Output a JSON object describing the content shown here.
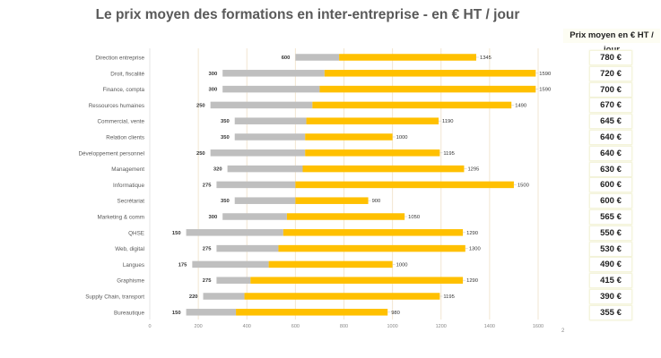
{
  "page_number": "2",
  "table": {
    "header": "Prix moyen en € HT / jour",
    "values": [
      "780 €",
      "720 €",
      "700 €",
      "670 €",
      "645 €",
      "640 €",
      "640 €",
      "630 €",
      "600 €",
      "600 €",
      "565 €",
      "550 €",
      "530 €",
      "490 €",
      "415 €",
      "390 €",
      "355 €"
    ]
  },
  "colors": {
    "min_segment": "#bfbfbf",
    "max_segment": "#ffc000",
    "grid": "#f2e6d0",
    "title": "#595959"
  },
  "chart_data": {
    "type": "bar",
    "orientation": "horizontal",
    "stacked": true,
    "title": "Le prix moyen des formations en inter-entreprise - en € HT / jour",
    "categories": [
      "Direction entreprise",
      "Droit, fiscalité",
      "Finance, compta",
      "Ressources humaines",
      "Commercial, vente",
      "Relation clients",
      "Développement personnel",
      "Management",
      "Informatique",
      "Secrétariat",
      "Marketing & comm",
      "QHSE",
      "Web, digital",
      "Langues",
      "Graphisme",
      "Supply Chain, transport",
      "Bureautique"
    ],
    "min": [
      600,
      300,
      300,
      250,
      350,
      350,
      250,
      320,
      275,
      350,
      300,
      150,
      275,
      175,
      275,
      220,
      150
    ],
    "average": [
      780,
      720,
      700,
      670,
      645,
      640,
      640,
      630,
      600,
      600,
      565,
      550,
      530,
      490,
      415,
      390,
      355
    ],
    "max": [
      1345,
      1590,
      1590,
      1490,
      1190,
      1000,
      1195,
      1295,
      1500,
      900,
      1050,
      1290,
      1300,
      1000,
      1290,
      1195,
      980
    ],
    "xlim": [
      0,
      1600
    ],
    "xticks": [
      0,
      200,
      400,
      600,
      800,
      1000,
      1200,
      1400,
      1600
    ],
    "grid": true,
    "legend": "none"
  }
}
